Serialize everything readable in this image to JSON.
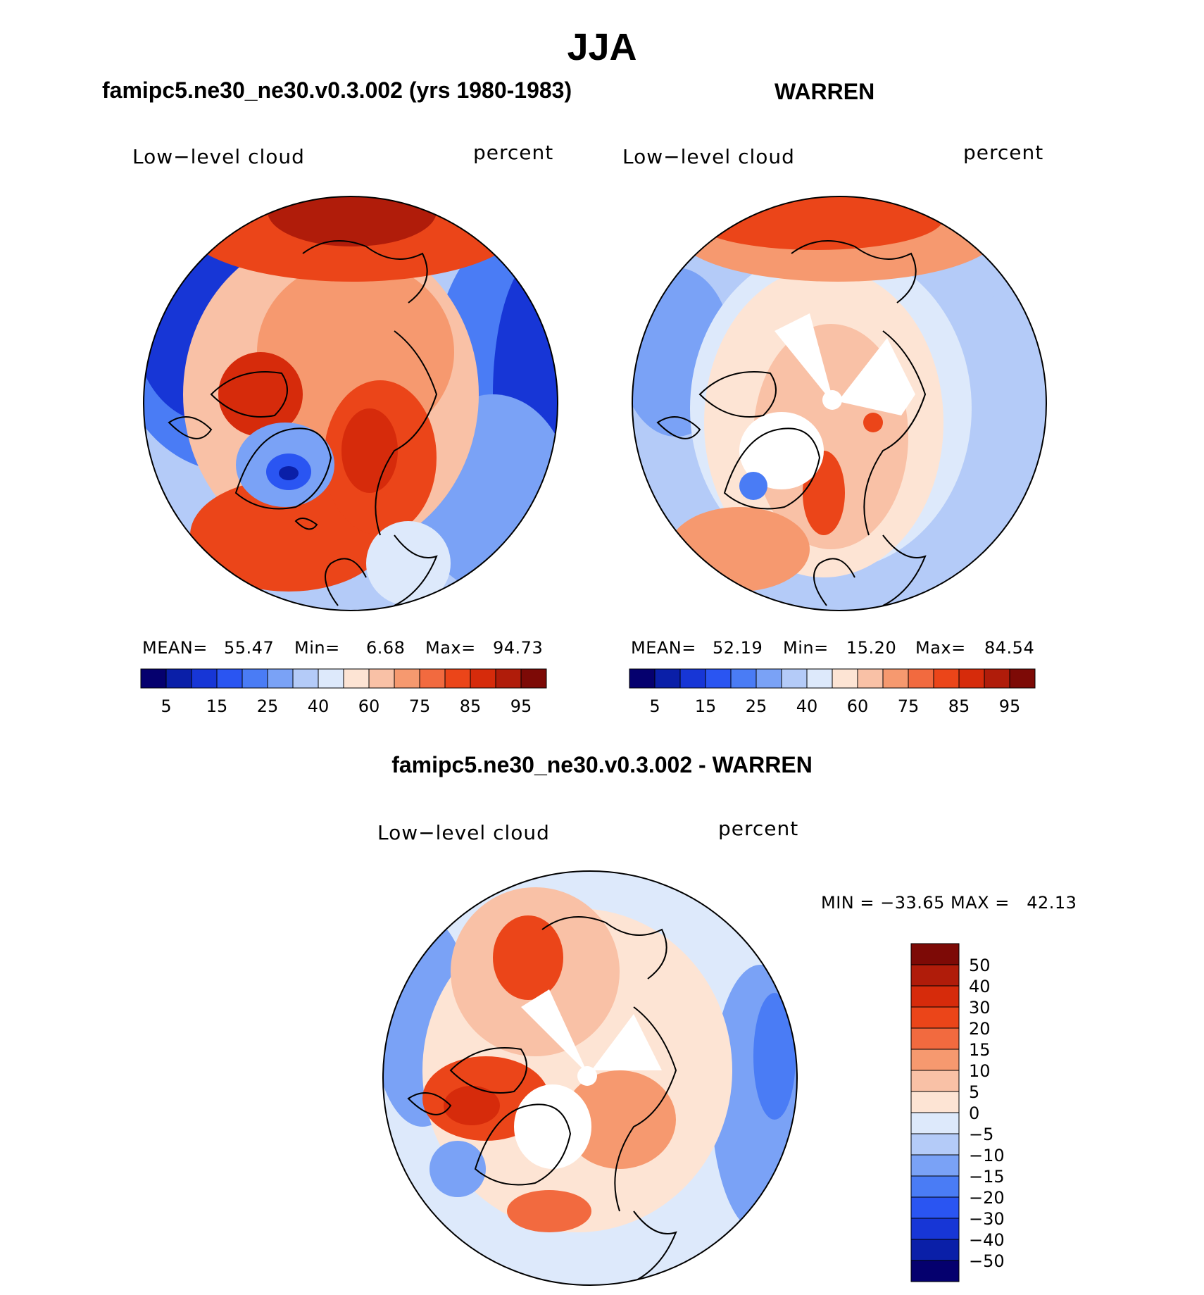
{
  "title": "JJA",
  "panels": [
    {
      "case_title": "famipc5.ne30_ne30.v0.3.002 (yrs 1980-1983)",
      "variable": "Low−level cloud",
      "units": "percent",
      "stats": {
        "mean_label": "MEAN=",
        "mean": "55.47",
        "min_label": "Min=",
        "min": "6.68",
        "max_label": "Max=",
        "max": "94.73"
      }
    },
    {
      "case_title": "WARREN",
      "variable": "Low−level cloud",
      "units": "percent",
      "stats": {
        "mean_label": "MEAN=",
        "mean": "52.19",
        "min_label": "Min=",
        "min": "15.20",
        "max_label": "Max=",
        "max": "84.54"
      }
    },
    {
      "case_title": "famipc5.ne30_ne30.v0.3.002 - WARREN",
      "variable": "Low−level cloud",
      "units": "percent",
      "stats_text": "MIN = −33.65 MAX =   42.13"
    }
  ],
  "colorbar_fields": {
    "tick_labels": [
      "5",
      "15",
      "25",
      "40",
      "60",
      "75",
      "85",
      "95"
    ],
    "colors": [
      "#05006e",
      "#0a1fa8",
      "#1736d6",
      "#2a55f2",
      "#4a7cf5",
      "#7aa2f6",
      "#b4cbf8",
      "#dde9fb",
      "#fde4d4",
      "#f9c1a6",
      "#f6996f",
      "#f26a3f",
      "#eb4519",
      "#d62b0b",
      "#b01c0a",
      "#7d0a06"
    ]
  },
  "colorbar_diff": {
    "tick_labels": [
      "50",
      "40",
      "30",
      "20",
      "15",
      "10",
      "5",
      "0",
      "−5",
      "−10",
      "−15",
      "−20",
      "−30",
      "−40",
      "−50"
    ],
    "colors": [
      "#7d0a06",
      "#b01c0a",
      "#d62b0b",
      "#eb4519",
      "#f26a3f",
      "#f6996f",
      "#f9c1a6",
      "#fde4d4",
      "#dde9fb",
      "#b4cbf8",
      "#7aa2f6",
      "#4a7cf5",
      "#2a55f2",
      "#1736d6",
      "#0a1fa8",
      "#05006e"
    ]
  },
  "chart_data": [
    {
      "type": "heatmap",
      "title": "famipc5.ne30_ne30.v0.3.002 (yrs 1980-1983)",
      "variable": "Low−level cloud",
      "units": "percent",
      "season": "JJA",
      "projection": "polar stereographic (north pole)",
      "contour_levels": [
        5,
        10,
        15,
        20,
        25,
        30,
        40,
        50,
        60,
        65,
        75,
        80,
        85,
        90,
        95
      ],
      "mean": 55.47,
      "min": 6.68,
      "max": 94.73
    },
    {
      "type": "heatmap",
      "title": "WARREN",
      "variable": "Low−level cloud",
      "units": "percent",
      "season": "JJA",
      "projection": "polar stereographic (north pole)",
      "contour_levels": [
        5,
        10,
        15,
        20,
        25,
        30,
        40,
        50,
        60,
        65,
        75,
        80,
        85,
        90,
        95
      ],
      "mean": 52.19,
      "min": 15.2,
      "max": 84.54
    },
    {
      "type": "heatmap",
      "title": "famipc5.ne30_ne30.v0.3.002 - WARREN",
      "variable": "Low−level cloud",
      "units": "percent",
      "season": "JJA",
      "projection": "polar stereographic (north pole)",
      "contour_levels": [
        -50,
        -40,
        -30,
        -20,
        -15,
        -10,
        -5,
        0,
        5,
        10,
        15,
        20,
        30,
        40,
        50
      ],
      "min": -33.65,
      "max": 42.13
    }
  ]
}
